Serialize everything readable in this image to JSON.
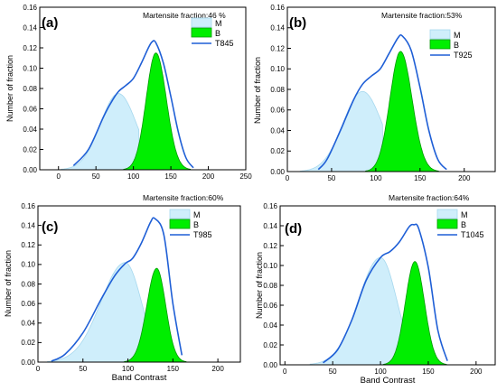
{
  "chart_data": [
    {
      "type": "area",
      "panel_label": "(a)",
      "annotation": "Martensite fraction:46 %",
      "xlabel": "",
      "ylabel": "Number of fraction",
      "xlim": [
        -25,
        250
      ],
      "ylim": [
        0,
        0.16
      ],
      "xticks": [
        0,
        50,
        100,
        150,
        200,
        250
      ],
      "yticks": [
        0.0,
        0.02,
        0.04,
        0.06,
        0.08,
        0.1,
        0.12,
        0.14,
        0.16
      ],
      "legend": [
        "M",
        "B",
        "T845"
      ],
      "series": [
        {
          "name": "M",
          "peak_x": 80,
          "peak_y": 0.075,
          "sd_left": 24,
          "sd_right": 24,
          "cutoff": 108
        },
        {
          "name": "B",
          "peak_x": 130,
          "peak_y": 0.115,
          "sd_left": 13,
          "sd_right": 14
        },
        {
          "name": "T845",
          "x": [
            20,
            40,
            60,
            70,
            80,
            90,
            100,
            110,
            120,
            125,
            130,
            140,
            150,
            160,
            170,
            180
          ],
          "y": [
            0.004,
            0.02,
            0.052,
            0.066,
            0.077,
            0.083,
            0.09,
            0.104,
            0.12,
            0.126,
            0.125,
            0.105,
            0.072,
            0.037,
            0.012,
            0.002
          ]
        }
      ]
    },
    {
      "type": "area",
      "panel_label": "(b)",
      "annotation": "Martensite fraction:53%",
      "xlabel": "",
      "ylabel": "Number of fraction",
      "xlim": [
        0,
        235
      ],
      "ylim": [
        0,
        0.16
      ],
      "xticks": [
        0,
        50,
        100,
        150,
        200
      ],
      "yticks": [
        0.0,
        0.02,
        0.04,
        0.06,
        0.08,
        0.1,
        0.12,
        0.14,
        0.16
      ],
      "legend": [
        "M",
        "B",
        "T925"
      ],
      "series": [
        {
          "name": "M",
          "peak_x": 85,
          "peak_y": 0.078,
          "sd_left": 22,
          "sd_right": 22,
          "cutoff": 108
        },
        {
          "name": "B",
          "peak_x": 128,
          "peak_y": 0.117,
          "sd_left": 12,
          "sd_right": 13
        },
        {
          "name": "T925",
          "x": [
            35,
            45,
            60,
            75,
            85,
            95,
            105,
            115,
            125,
            130,
            140,
            150,
            160,
            170,
            180
          ],
          "y": [
            0.002,
            0.012,
            0.04,
            0.07,
            0.085,
            0.093,
            0.1,
            0.115,
            0.13,
            0.132,
            0.118,
            0.082,
            0.04,
            0.012,
            0.002
          ]
        }
      ]
    },
    {
      "type": "area",
      "panel_label": "(c)",
      "annotation": "Martensite fraction:60%",
      "xlabel": "Band Contrast",
      "ylabel": "Number of fraction",
      "xlim": [
        0,
        225
      ],
      "ylim": [
        0,
        0.16
      ],
      "xticks": [
        0,
        50,
        100,
        150,
        200
      ],
      "yticks": [
        0.0,
        0.02,
        0.04,
        0.06,
        0.08,
        0.1,
        0.12,
        0.14,
        0.16
      ],
      "legend": [
        "M",
        "B",
        "T985"
      ],
      "series": [
        {
          "name": "M",
          "peak_x": 97,
          "peak_y": 0.102,
          "sd_left": 27,
          "sd_right": 18,
          "cutoff": 150
        },
        {
          "name": "B",
          "peak_x": 132,
          "peak_y": 0.096,
          "sd_left": 11,
          "sd_right": 10
        },
        {
          "name": "T985",
          "x": [
            15,
            30,
            50,
            70,
            85,
            97,
            105,
            115,
            125,
            130,
            140,
            150,
            160
          ],
          "y": [
            0.001,
            0.008,
            0.03,
            0.064,
            0.088,
            0.101,
            0.106,
            0.122,
            0.143,
            0.147,
            0.13,
            0.06,
            0.007
          ]
        }
      ]
    },
    {
      "type": "area",
      "panel_label": "(d)",
      "annotation": "Martensite fraction:64%",
      "xlabel": "Band Contrast",
      "ylabel": "Number of fraction",
      "xlim": [
        -5,
        220
      ],
      "ylim": [
        0,
        0.16
      ],
      "xticks": [
        0,
        50,
        100,
        150,
        200
      ],
      "yticks": [
        0.0,
        0.02,
        0.04,
        0.06,
        0.08,
        0.1,
        0.12,
        0.14,
        0.16
      ],
      "legend": [
        "M",
        "B",
        "T1045"
      ],
      "series": [
        {
          "name": "M",
          "peak_x": 100,
          "peak_y": 0.108,
          "sd_left": 23,
          "sd_right": 17,
          "cutoff": 150
        },
        {
          "name": "B",
          "peak_x": 136,
          "peak_y": 0.104,
          "sd_left": 10,
          "sd_right": 10
        },
        {
          "name": "T1045",
          "x": [
            40,
            55,
            70,
            85,
            100,
            110,
            120,
            130,
            135,
            140,
            150,
            160,
            170
          ],
          "y": [
            0.002,
            0.015,
            0.045,
            0.085,
            0.108,
            0.114,
            0.124,
            0.139,
            0.141,
            0.137,
            0.098,
            0.035,
            0.004
          ]
        }
      ]
    }
  ],
  "colors": {
    "martensite_fill": "#cfeefb",
    "martensite_stroke": "#a6d8ee",
    "bainite_fill": "#00ee00",
    "bainite_stroke": "#009900",
    "total_line": "#1f5fd6",
    "axis": "#000000"
  }
}
